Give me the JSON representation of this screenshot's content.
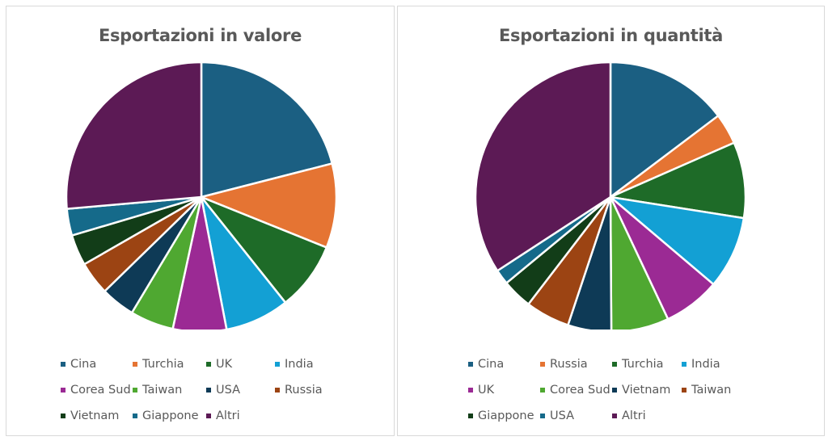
{
  "chart_data": [
    {
      "type": "pie",
      "title": "Esportazioni in valore",
      "categories": [
        "Cina",
        "Turchia",
        "UK",
        "India",
        "Corea Sud",
        "Taiwan",
        "USA",
        "Russia",
        "Vietnam",
        "Giappone",
        "Altri"
      ],
      "values": [
        21.0,
        10.1,
        8.2,
        7.7,
        6.4,
        5.2,
        4.1,
        4.0,
        3.7,
        3.2,
        26.4
      ],
      "unit": "% (estimated from slice angles)",
      "colors": [
        "#1b5f82",
        "#e57433",
        "#1e6b28",
        "#13a0d4",
        "#9b2a94",
        "#4fa831",
        "#0e3a56",
        "#9c4413",
        "#123d18",
        "#156a8a",
        "#5c1a55"
      ],
      "legend_position": "bottom"
    },
    {
      "type": "pie",
      "title": "Esportazioni in quantità",
      "categories": [
        "Cina",
        "Russia",
        "Turchia",
        "India",
        "UK",
        "Corea Sud",
        "Vietnam",
        "Taiwan",
        "Giappone",
        "USA",
        "Altri"
      ],
      "values": [
        14.7,
        3.7,
        9.1,
        8.7,
        6.8,
        6.9,
        5.2,
        5.3,
        3.6,
        1.8,
        34.2
      ],
      "unit": "% (estimated from slice angles)",
      "colors": [
        "#1b5f82",
        "#e57433",
        "#1e6b28",
        "#13a0d4",
        "#9b2a94",
        "#4fa831",
        "#0e3a56",
        "#9c4413",
        "#123d18",
        "#156a8a",
        "#5c1a55"
      ],
      "legend_position": "bottom"
    }
  ],
  "left": {
    "title": "Esportazioni in valore",
    "legend": [
      "Cina",
      "Turchia",
      "UK",
      "India",
      "Corea Sud",
      "Taiwan",
      "USA",
      "Russia",
      "Vietnam",
      "Giappone",
      "Altri"
    ]
  },
  "right": {
    "title": "Esportazioni in quantità",
    "legend": [
      "Cina",
      "Russia",
      "Turchia",
      "India",
      "UK",
      "Corea Sud",
      "Vietnam",
      "Taiwan",
      "Giappone",
      "USA",
      "Altri"
    ]
  }
}
